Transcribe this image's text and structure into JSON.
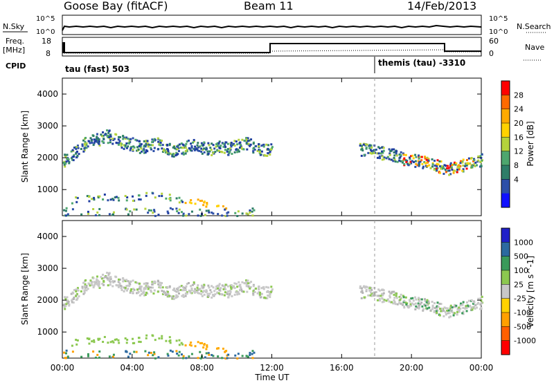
{
  "header": {
    "station": "Goose Bay (fitACF)",
    "beam": "Beam 11",
    "date": "14/Feb/2013"
  },
  "noise_panel": {
    "left_label": "N.Sky",
    "right_label": "N.Search",
    "left_ticks": [
      "10^5",
      "10^0"
    ],
    "right_ticks": [
      "10^5",
      "10^0"
    ]
  },
  "freq_panel": {
    "label_top": "Freq.",
    "label_unit": "[MHz]",
    "right_label": "Nave",
    "left_ticks": [
      "18",
      "8"
    ],
    "right_ticks": [
      "60",
      "0"
    ]
  },
  "cpid": {
    "label": "CPID",
    "segments": [
      "tau (fast) 503",
      "themis (tau) -3310"
    ]
  },
  "axes": {
    "xlabel": "Time UT",
    "ylabel": "Slant Range [km]",
    "xticks": [
      "00:00",
      "04:00",
      "08:00",
      "12:00",
      "16:00",
      "20:00",
      "00:00"
    ],
    "yticks": [
      "1000",
      "2000",
      "3000",
      "4000"
    ]
  },
  "power_scale": {
    "title": "Power [dB]",
    "labels": [
      "28",
      "24",
      "20",
      "16",
      "12",
      "8",
      "4"
    ],
    "colors": [
      "#ff0000",
      "#ff6a00",
      "#ffaa00",
      "#ffd200",
      "#b4d23c",
      "#4ea66e",
      "#2e7d68",
      "#2c4fa8",
      "#1010ff"
    ]
  },
  "velocity_scale": {
    "title": "Velocity [m s^-1]",
    "labels": [
      "1000",
      "500",
      "100",
      "25",
      "-25",
      "-100",
      "-500",
      "-1000"
    ],
    "colors": [
      "#2020c8",
      "#2c6aa0",
      "#3a9a5a",
      "#8cc850",
      "#c8c8c8",
      "#ffd200",
      "#ffa000",
      "#ff6000",
      "#ff0000"
    ]
  },
  "chart_data": {
    "type": "heatmap",
    "x_range_hours": [
      0,
      24
    ],
    "y_range_km": [
      180,
      4500
    ],
    "power_band": [
      {
        "x": 0.0,
        "y": 1900
      },
      {
        "x": 0.5,
        "y": 2100
      },
      {
        "x": 1.0,
        "y": 2350
      },
      {
        "x": 1.5,
        "y": 2550
      },
      {
        "x": 2.0,
        "y": 2600
      },
      {
        "x": 2.5,
        "y": 2700
      },
      {
        "x": 3.0,
        "y": 2650
      },
      {
        "x": 3.5,
        "y": 2500
      },
      {
        "x": 4.0,
        "y": 2450
      },
      {
        "x": 4.5,
        "y": 2350
      },
      {
        "x": 5.0,
        "y": 2400
      },
      {
        "x": 5.5,
        "y": 2500
      },
      {
        "x": 6.0,
        "y": 2300
      },
      {
        "x": 6.5,
        "y": 2250
      },
      {
        "x": 7.0,
        "y": 2350
      },
      {
        "x": 7.5,
        "y": 2450
      },
      {
        "x": 8.0,
        "y": 2350
      },
      {
        "x": 8.5,
        "y": 2300
      },
      {
        "x": 9.0,
        "y": 2400
      },
      {
        "x": 9.5,
        "y": 2300
      },
      {
        "x": 10.0,
        "y": 2400
      },
      {
        "x": 10.5,
        "y": 2500
      },
      {
        "x": 11.0,
        "y": 2350
      },
      {
        "x": 11.5,
        "y": 2300
      },
      {
        "x": 12.0,
        "y": 2250
      },
      {
        "x": 17.0,
        "y": 2300
      },
      {
        "x": 17.5,
        "y": 2250
      },
      {
        "x": 18.0,
        "y": 2200
      },
      {
        "x": 18.5,
        "y": 2150
      },
      {
        "x": 19.0,
        "y": 2100
      },
      {
        "x": 19.5,
        "y": 2000
      },
      {
        "x": 20.0,
        "y": 1950
      },
      {
        "x": 20.5,
        "y": 1900
      },
      {
        "x": 21.0,
        "y": 1850
      },
      {
        "x": 21.5,
        "y": 1750
      },
      {
        "x": 22.0,
        "y": 1650
      },
      {
        "x": 22.5,
        "y": 1700
      },
      {
        "x": 23.0,
        "y": 1800
      },
      {
        "x": 23.5,
        "y": 1900
      },
      {
        "x": 24.0,
        "y": 1950
      }
    ],
    "lower_band": [
      {
        "x": 0.5,
        "y": 700
      },
      {
        "x": 2.0,
        "y": 800
      },
      {
        "x": 3.5,
        "y": 750
      },
      {
        "x": 5.0,
        "y": 850
      },
      {
        "x": 6.5,
        "y": 750
      },
      {
        "x": 8.0,
        "y": 600
      },
      {
        "x": 9.5,
        "y": 500
      }
    ]
  }
}
